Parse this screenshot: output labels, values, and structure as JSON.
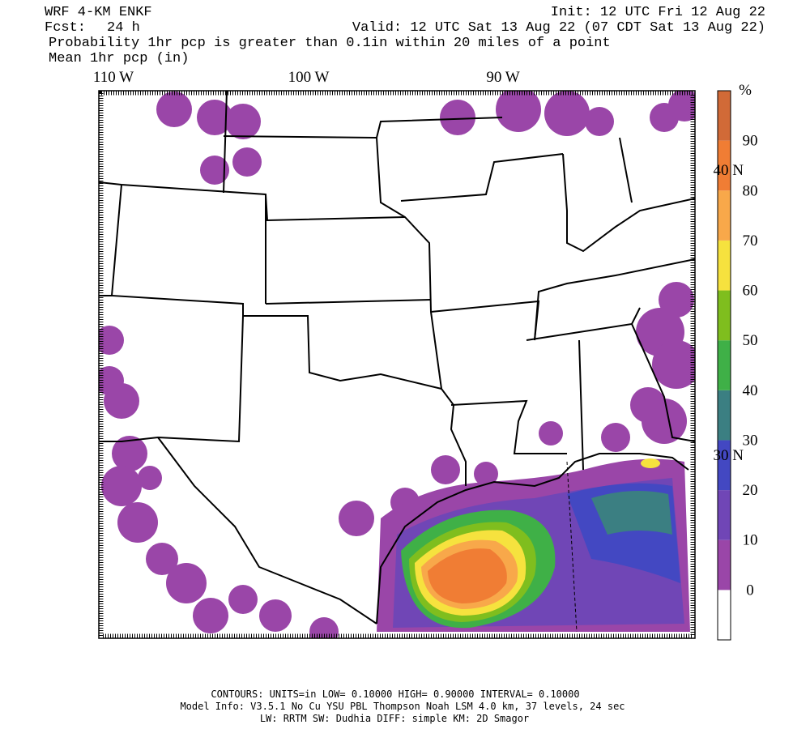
{
  "header": {
    "model": "WRF 4-KM ENKF",
    "init": "Init: 12 UTC Fri 12 Aug 22",
    "fcst_label": "Fcst:",
    "fcst": "24 h",
    "valid": "Valid: 12 UTC Sat 13 Aug 22 (07 CDT Sat 13 Aug 22)",
    "description": "Probability 1hr pcp is greater than 0.1in within 20 miles of a point",
    "field": "Mean 1hr pcp (in)"
  },
  "map": {
    "lon_labels": [
      "110 W",
      "100 W",
      "90 W"
    ],
    "lat_labels": [
      "40 N",
      "30 N"
    ]
  },
  "colorbar": {
    "unit": "%",
    "labels": [
      0,
      10,
      20,
      30,
      40,
      50,
      60,
      70,
      80,
      90
    ],
    "colors": [
      "#ffffff",
      "#9a46a8",
      "#7046b6",
      "#4348c2",
      "#3b7f82",
      "#3fb047",
      "#7fbe1e",
      "#f6e23e",
      "#f8a84a",
      "#f07d34",
      "#d16a37"
    ]
  },
  "footer": {
    "contours": "CONTOURS:  UNITS=in  LOW= 0.10000      HIGH= 0.90000      INTERVAL=  0.10000",
    "model_info": "Model Info: V3.5.1    No Cu    YSU PBL  Thompson      Noah LSM  4.0 km,  37 levels,    24 sec",
    "physics": "LW: RRTM SW: Dudhia  DIFF: simple KM: 2D Smagor"
  }
}
